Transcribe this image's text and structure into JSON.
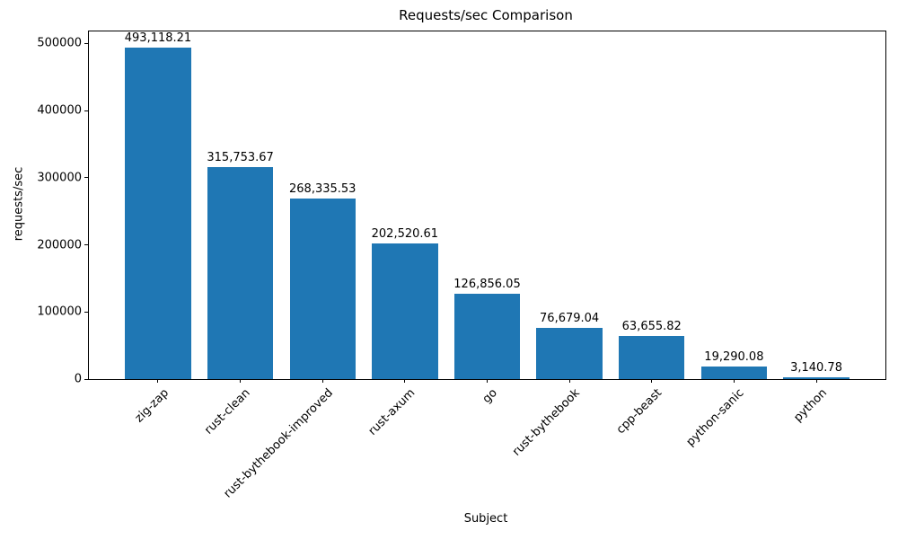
{
  "chart_data": {
    "type": "bar",
    "title": "Requests/sec Comparison",
    "xlabel": "Subject",
    "ylabel": "requests/sec",
    "categories": [
      "zig-zap",
      "rust-clean",
      "rust-bythebook-improved",
      "rust-axum",
      "go",
      "rust-bythebook",
      "cpp-beast",
      "python-sanic",
      "python"
    ],
    "values": [
      493118.21,
      315753.67,
      268335.53,
      202520.61,
      126856.05,
      76679.04,
      63655.82,
      19290.08,
      3140.78
    ],
    "bar_labels": [
      "493,118.21",
      "315,753.67",
      "268,335.53",
      "202,520.61",
      "126,856.05",
      "76,679.04",
      "63,655.82",
      "19,290.08",
      "3,140.78"
    ],
    "yticks": [
      0,
      100000,
      200000,
      300000,
      400000,
      500000
    ],
    "ytick_labels": [
      "0",
      "100000",
      "200000",
      "300000",
      "400000",
      "500000"
    ],
    "ylim": [
      0,
      517774
    ],
    "bar_color": "#1f77b4",
    "grid": false,
    "legend_position": "none"
  }
}
